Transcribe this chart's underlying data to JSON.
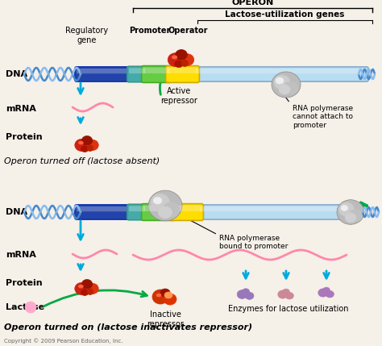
{
  "title": "OPERON",
  "background_color": "#f5f0e8",
  "top_labels": {
    "regulatory_gene": "Regulatory\ngene",
    "promoter": "Promoter",
    "operator": "Operator",
    "lactose_genes": "Lactose-utilization genes"
  },
  "caption_top": "Operon turned off (lactose absent)",
  "caption_bottom": "Operon turned on (lactose inactivates repressor)",
  "active_repressor": "Active\nrepressor",
  "inactive_repressor": "Inactive\nrepressor",
  "rna_poly_top": "RNA polymerase\ncannot attach to\npromoter",
  "rna_poly_bottom": "RNA polymerase\nbound to promoter",
  "enzymes_label": "Enzymes for lactose utilization",
  "copyright": "Copyright © 2009 Pearson Education, Inc.",
  "colors": {
    "dna_helix_blue": "#4488cc",
    "dna_helix_light": "#88bbee",
    "dna_dark_tube": "#2244aa",
    "dna_mid_tube": "#4466bb",
    "dna_teal": "#44aaaa",
    "promoter_green": "#66cc44",
    "operator_yellow": "#ffdd00",
    "lac_gene_light": "#b8dcf0",
    "repressor_red": "#cc2211",
    "repressor_dark": "#991100",
    "inactive_rep": "#cc3300",
    "lactose_pink": "#ffaacc",
    "mrna_pink": "#ff88aa",
    "cyan_arrow": "#00aadd",
    "green_arrow": "#00aa44",
    "rna_poly_gray": "#bbbbbb",
    "rna_poly_dark": "#888888",
    "enzyme_purple": "#9977bb",
    "enzyme_mauve": "#cc8899",
    "background": "#f5f0e8"
  }
}
